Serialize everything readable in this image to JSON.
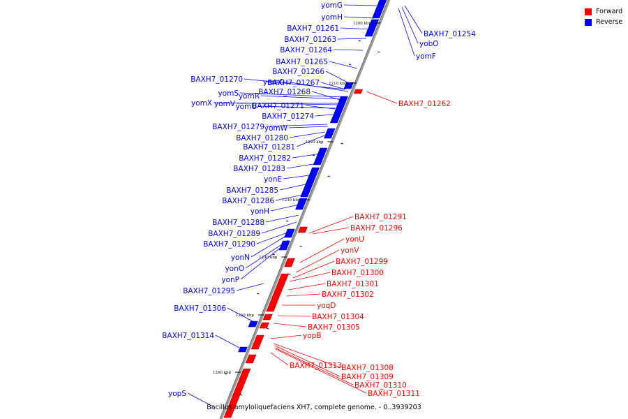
{
  "caption": "Bacillus amyloliquefaciens XH7, complete genome. - 0..3939203",
  "legend": [
    {
      "label": "Forward",
      "color": "#ff0000"
    },
    {
      "label": "Reverse",
      "color": "#0000ff"
    }
  ],
  "colors": {
    "forward": "#ff0000",
    "reverse": "#0000ff",
    "backbone": "#9a9a9a"
  },
  "ticks": [
    "1200 kbp",
    "1210 kbp",
    "1220 kbp",
    "1230 kbp",
    "1240 kbp",
    "1250 kbp",
    "1260 kbp"
  ],
  "reverse_labels_left": [
    "yomG",
    "yomH",
    "BAXH7_01261",
    "BAXH7_01263",
    "BAXH7_01264",
    "BAXH7_01265",
    "BAXH7_01266",
    "BAXH7_01270",
    "yomO",
    "BAXH7_01267",
    "yomS",
    "yomR",
    "BAXH7_01268",
    "yomX",
    "yomV",
    "yomU",
    "BAXH7_01271",
    "BAXH7_01274",
    "BAXH7_01279",
    "yomW",
    "BAXH7_01280",
    "BAXH7_01281",
    "BAXH7_01282",
    "BAXH7_01283",
    "yonE",
    "BAXH7_01285",
    "BAXH7_01286",
    "yonH",
    "BAXH7_01288",
    "BAXH7_01289",
    "BAXH7_01290",
    "yonN",
    "yonO",
    "yonP",
    "BAXH7_01295",
    "BAXH7_01306",
    "BAXH7_01314",
    "yopS"
  ],
  "reverse_labels_right": [
    "BAXH7_01254",
    "yobO",
    "yomF"
  ],
  "forward_labels": [
    "BAXH7_01262",
    "BAXH7_01291",
    "BAXH7_01296",
    "yonU",
    "yonV",
    "BAXH7_01299",
    "BAXH7_01300",
    "BAXH7_01301",
    "BAXH7_01302",
    "yoqD",
    "BAXH7_01304",
    "BAXH7_01305",
    "yopB",
    "BAXH7_01313",
    "BAXH7_01308",
    "BAXH7_01309",
    "BAXH7_01310",
    "BAXH7_01311"
  ]
}
